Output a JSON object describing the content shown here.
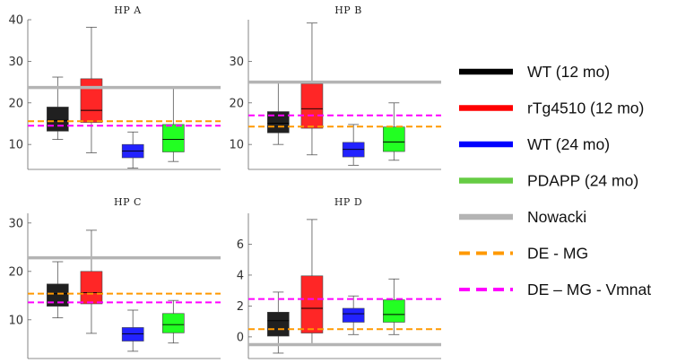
{
  "chart_data": {
    "type": "box",
    "legend": {
      "placement": "right",
      "entries": [
        {
          "label": "WT (12 mo)",
          "color": "#000000",
          "style": "solid"
        },
        {
          "label": "rTg4510 (12 mo)",
          "color": "#ff0000",
          "style": "solid"
        },
        {
          "label": "WT (24 mo)",
          "color": "#0000ff",
          "style": "solid"
        },
        {
          "label": "PDAPP (24 mo)",
          "color": "#66cc44",
          "style": "solid"
        },
        {
          "label": "Nowacki",
          "color": "#b4b4b4",
          "style": "solid"
        },
        {
          "label": "DE - MG",
          "color": "#ff9900",
          "style": "dashed"
        },
        {
          "label": "DE – MG - Vmnat",
          "color": "#ff00ff",
          "style": "dashed"
        }
      ]
    },
    "panels": [
      {
        "title": "HP A",
        "ylim": [
          4,
          40
        ],
        "yticks": [
          10,
          20,
          30,
          40
        ],
        "grid": false,
        "boxes": [
          {
            "group": "WT (12 mo)",
            "fill": "#202020",
            "min": 11.2,
            "q1": 13.2,
            "median": 15.8,
            "q3": 19.0,
            "max": 26.2
          },
          {
            "group": "rTg4510 (12 mo)",
            "fill": "#ff2626",
            "min": 8.0,
            "q1": 15.3,
            "median": 18.2,
            "q3": 25.8,
            "max": 38.2
          },
          {
            "group": "WT (24 mo)",
            "fill": "#2222ff",
            "min": 4.3,
            "q1": 6.8,
            "median": 8.4,
            "q3": 10.0,
            "max": 13.0
          },
          {
            "group": "PDAPP (24 mo)",
            "fill": "#22ff22",
            "min": 5.9,
            "q1": 8.2,
            "median": 11.2,
            "q3": 14.8,
            "max": 23.5
          }
        ],
        "reference_lines": [
          {
            "name": "Nowacki",
            "value": 23.7
          },
          {
            "name": "DE - MG",
            "value": 15.6
          },
          {
            "name": "DE – MG - Vmnat",
            "value": 14.5
          }
        ]
      },
      {
        "title": "HP B",
        "ylim": [
          4,
          40
        ],
        "yticks": [
          10,
          20,
          30
        ],
        "grid": false,
        "boxes": [
          {
            "group": "WT (12 mo)",
            "fill": "#202020",
            "min": 10.0,
            "q1": 12.8,
            "median": 15.1,
            "q3": 17.9,
            "max": 25.2
          },
          {
            "group": "rTg4510 (12 mo)",
            "fill": "#ff2626",
            "min": 7.5,
            "q1": 13.9,
            "median": 18.6,
            "q3": 24.6,
            "max": 39.2
          },
          {
            "group": "WT (24 mo)",
            "fill": "#2222ff",
            "min": 5.0,
            "q1": 7.0,
            "median": 8.8,
            "q3": 10.5,
            "max": 14.8
          },
          {
            "group": "PDAPP (24 mo)",
            "fill": "#22ff22",
            "min": 6.2,
            "q1": 8.3,
            "median": 10.6,
            "q3": 14.2,
            "max": 20.0
          }
        ],
        "reference_lines": [
          {
            "name": "Nowacki",
            "value": 25.0
          },
          {
            "name": "DE - MG",
            "value": 14.3
          },
          {
            "name": "DE – MG - Vmnat",
            "value": 17.0
          }
        ]
      },
      {
        "title": "HP C",
        "ylim": [
          2,
          32
        ],
        "yticks": [
          10,
          20,
          30
        ],
        "grid": false,
        "boxes": [
          {
            "group": "WT (12 mo)",
            "fill": "#202020",
            "min": 10.4,
            "q1": 12.8,
            "median": 15.4,
            "q3": 17.4,
            "max": 22.0
          },
          {
            "group": "rTg4510 (12 mo)",
            "fill": "#ff2626",
            "min": 7.2,
            "q1": 13.3,
            "median": 15.6,
            "q3": 20.0,
            "max": 28.5
          },
          {
            "group": "WT (24 mo)",
            "fill": "#2222ff",
            "min": 3.5,
            "q1": 5.6,
            "median": 7.1,
            "q3": 8.4,
            "max": 12.0
          },
          {
            "group": "PDAPP (24 mo)",
            "fill": "#22ff22",
            "min": 5.2,
            "q1": 7.3,
            "median": 9.0,
            "q3": 11.3,
            "max": 14.0
          }
        ],
        "reference_lines": [
          {
            "name": "Nowacki",
            "value": 22.8
          },
          {
            "name": "DE - MG",
            "value": 15.4
          },
          {
            "name": "DE – MG - Vmnat",
            "value": 13.6
          }
        ]
      },
      {
        "title": "HP D",
        "ylim": [
          -1.4,
          8.0
        ],
        "yticks": [
          0,
          2,
          4,
          6
        ],
        "grid": false,
        "boxes": [
          {
            "group": "WT (12 mo)",
            "fill": "#202020",
            "min": -1.05,
            "q1": 0.05,
            "median": 1.05,
            "q3": 1.6,
            "max": 2.9
          },
          {
            "group": "rTg4510 (12 mo)",
            "fill": "#ff2626",
            "min": -0.45,
            "q1": 0.25,
            "median": 1.85,
            "q3": 3.95,
            "max": 7.6
          },
          {
            "group": "WT (24 mo)",
            "fill": "#2222ff",
            "min": 0.15,
            "q1": 0.95,
            "median": 1.5,
            "q3": 1.85,
            "max": 2.65
          },
          {
            "group": "PDAPP (24 mo)",
            "fill": "#22ff22",
            "min": 0.15,
            "q1": 0.95,
            "median": 1.45,
            "q3": 2.4,
            "max": 3.75
          }
        ],
        "reference_lines": [
          {
            "name": "Nowacki",
            "value": -0.5
          },
          {
            "name": "DE - MG",
            "value": 0.5
          },
          {
            "name": "DE – MG - Vmnat",
            "value": 2.45
          }
        ]
      }
    ]
  }
}
